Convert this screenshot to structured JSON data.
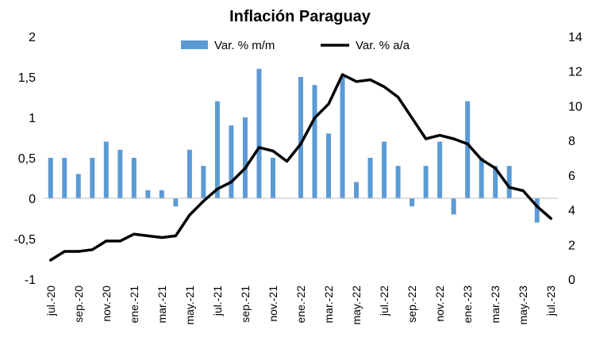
{
  "chart_data": {
    "type": "bar+line",
    "title": "Inflación Paraguay",
    "legend": {
      "placement": "top",
      "entries": [
        "Var. % m/m",
        "Var. % a/a"
      ]
    },
    "categories": [
      "jul.-20",
      "ago.-20",
      "sep.-20",
      "oct.-20",
      "nov.-20",
      "dic.-20",
      "ene.-21",
      "feb.-21",
      "mar.-21",
      "abr.-21",
      "may.-21",
      "jun.-21",
      "jul.-21",
      "ago.-21",
      "sep.-21",
      "oct.-21",
      "nov.-21",
      "dic.-21",
      "ene.-22",
      "feb.-22",
      "mar.-22",
      "abr.-22",
      "may.-22",
      "jun.-22",
      "jul.-22",
      "ago.-22",
      "sep.-22",
      "oct.-22",
      "nov.-22",
      "dic.-22",
      "ene.-23",
      "feb.-23",
      "mar.-23",
      "abr.-23",
      "may.-23",
      "jun.-23",
      "jul.-23"
    ],
    "x_tick_labels": [
      "jul.-20",
      "sep.-20",
      "nov.-20",
      "ene.-21",
      "mar.-21",
      "may.-21",
      "jul.-21",
      "sep.-21",
      "nov.-21",
      "ene.-22",
      "mar.-22",
      "may.-22",
      "jul.-22",
      "sep.-22",
      "nov.-22",
      "ene.-23",
      "mar.-23",
      "may.-23",
      "jul.-23"
    ],
    "series": [
      {
        "name": "Var. % m/m",
        "type": "bar",
        "axis": "left",
        "color": "#5B9BD5",
        "values": [
          0.5,
          0.5,
          0.3,
          0.5,
          0.7,
          0.6,
          0.5,
          0.1,
          0.1,
          -0.1,
          0.6,
          0.4,
          1.2,
          0.9,
          1.0,
          1.6,
          0.5,
          0.0,
          1.5,
          1.4,
          0.8,
          1.5,
          0.2,
          0.5,
          0.7,
          0.4,
          -0.1,
          0.4,
          0.7,
          -0.2,
          1.2,
          0.5,
          0.4,
          0.4,
          0.0,
          -0.3,
          0.0
        ]
      },
      {
        "name": "Var. % a/a",
        "type": "line",
        "axis": "right",
        "color": "#000000",
        "values": [
          1.1,
          1.6,
          1.6,
          1.7,
          2.2,
          2.2,
          2.6,
          2.5,
          2.4,
          2.5,
          3.7,
          4.5,
          5.2,
          5.6,
          6.4,
          7.6,
          7.4,
          6.8,
          7.8,
          9.3,
          10.1,
          11.8,
          11.4,
          11.5,
          11.1,
          10.5,
          9.3,
          8.1,
          8.3,
          8.1,
          7.8,
          6.9,
          6.4,
          5.3,
          5.1,
          4.2,
          3.5
        ]
      }
    ],
    "y_left": {
      "min": -1,
      "max": 2,
      "ticks": [
        "-1",
        "-0,5",
        "0",
        "0,5",
        "1",
        "1,5",
        "2"
      ]
    },
    "y_right": {
      "min": 0,
      "max": 14,
      "ticks": [
        "0",
        "2",
        "4",
        "6",
        "8",
        "10",
        "12",
        "14"
      ]
    },
    "grid": false
  }
}
